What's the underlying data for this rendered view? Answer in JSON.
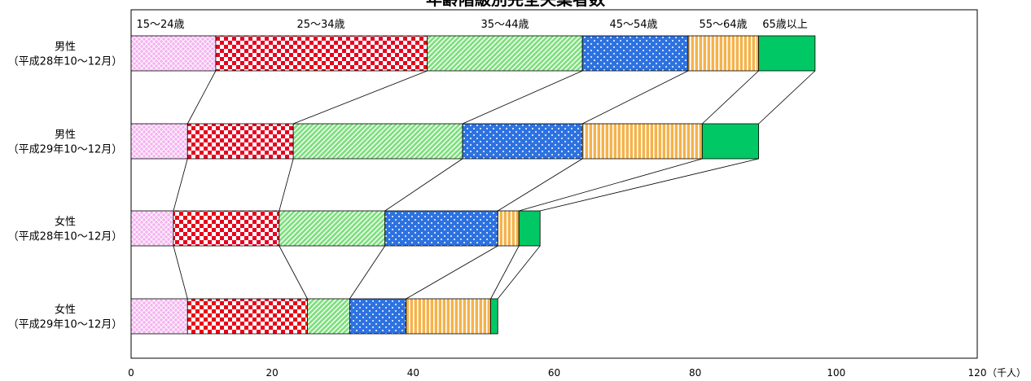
{
  "chart_data": {
    "type": "bar",
    "stacked": true,
    "orientation": "horizontal",
    "title": "年齢階級別完全失業者数",
    "unit": "（千人）",
    "xlim": [
      0,
      120
    ],
    "x_ticks": [
      "0",
      "20",
      "40",
      "60",
      "80",
      "100",
      "120"
    ],
    "categories": [
      [
        "男性",
        "（平成28年10～12月）"
      ],
      [
        "男性",
        "（平成29年10～12月）"
      ],
      [
        "女性",
        "（平成28年10～12月）"
      ],
      [
        "女性",
        "（平成29年10～12月）"
      ]
    ],
    "series": [
      {
        "name": "15～24歳",
        "values": [
          12,
          8,
          6,
          8
        ]
      },
      {
        "name": "25～34歳",
        "values": [
          30,
          15,
          15,
          17
        ]
      },
      {
        "name": "35～44歳",
        "values": [
          22,
          24,
          15,
          6
        ]
      },
      {
        "name": "45～54歳",
        "values": [
          15,
          17,
          16,
          8
        ]
      },
      {
        "name": "55～64歳",
        "values": [
          10,
          17,
          3,
          12
        ]
      },
      {
        "name": "65歳以上",
        "values": [
          8,
          8,
          3,
          1
        ]
      }
    ],
    "colors": [
      "#f4b4f0",
      "#e8001c",
      "#7ee07e",
      "#2d72e0",
      "#f5b24a",
      "#00c864"
    ]
  }
}
